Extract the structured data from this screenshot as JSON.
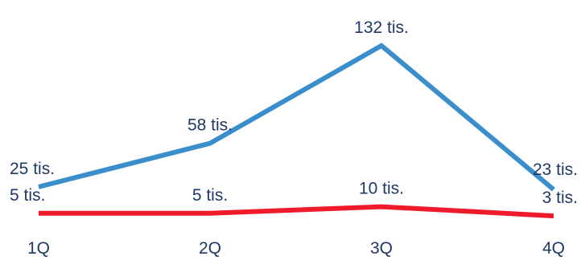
{
  "chart_data": {
    "type": "line",
    "categories": [
      "1Q",
      "2Q",
      "3Q",
      "4Q"
    ],
    "series": [
      {
        "values": [
          25,
          58,
          132,
          23
        ],
        "labels": [
          "25 tis.",
          "58 tis.",
          "132 tis.",
          "23 tis."
        ],
        "color": "#3a8ecb"
      },
      {
        "values": [
          5,
          5,
          10,
          3
        ],
        "labels": [
          "5 tis.",
          "5 tis.",
          "10 tis.",
          "3 tis."
        ],
        "color": "#ef1b2d"
      }
    ],
    "grid": false,
    "legend": "none"
  }
}
